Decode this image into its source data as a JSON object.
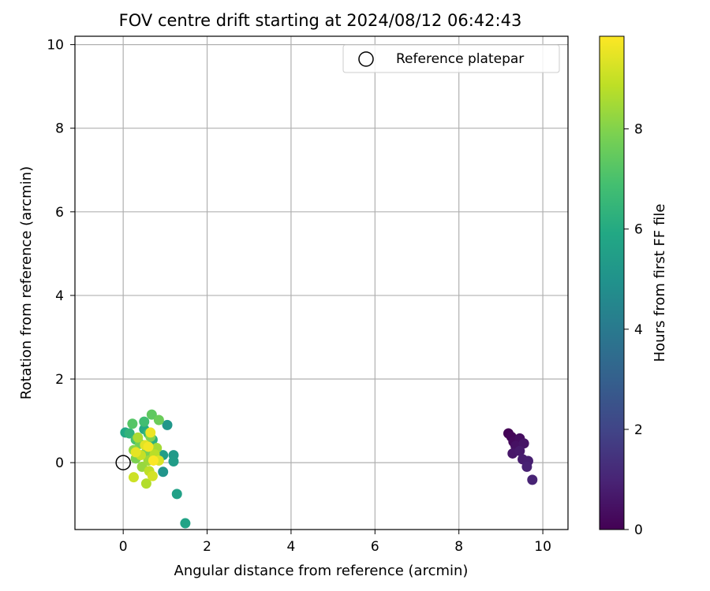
{
  "chart_data": {
    "type": "scatter",
    "title": "FOV centre drift starting at 2024/08/12 06:42:43",
    "xlabel": "Angular distance from reference (arcmin)",
    "ylabel": "Rotation from reference (arcmin)",
    "xlim": [
      -1.15,
      10.6
    ],
    "ylim": [
      -1.6,
      10.2
    ],
    "xticks": [
      0,
      2,
      4,
      6,
      8,
      10
    ],
    "yticks": [
      0,
      2,
      4,
      6,
      8,
      10
    ],
    "grid": true,
    "legend": {
      "placement": "top-right",
      "entries": [
        "Reference platepar"
      ]
    },
    "reference_point": {
      "name": "Reference platepar",
      "x": 0,
      "y": 0,
      "marker": "hollow circle"
    },
    "colorbar": {
      "label": "Hours from first FF file",
      "range": [
        0,
        9.85
      ],
      "ticks": [
        0,
        2,
        4,
        6,
        8
      ],
      "colormap": "viridis"
    },
    "points": [
      {
        "x": 9.18,
        "y": 0.7,
        "c": 0.05
      },
      {
        "x": 9.25,
        "y": 0.62,
        "c": 0.15
      },
      {
        "x": 9.3,
        "y": 0.5,
        "c": 0.25
      },
      {
        "x": 9.45,
        "y": 0.58,
        "c": 0.35
      },
      {
        "x": 9.35,
        "y": 0.4,
        "c": 0.45
      },
      {
        "x": 9.55,
        "y": 0.46,
        "c": 0.55
      },
      {
        "x": 9.28,
        "y": 0.22,
        "c": 0.62
      },
      {
        "x": 9.45,
        "y": 0.28,
        "c": 0.7
      },
      {
        "x": 9.52,
        "y": 0.08,
        "c": 0.78
      },
      {
        "x": 9.65,
        "y": 0.04,
        "c": 0.85
      },
      {
        "x": 9.62,
        "y": -0.1,
        "c": 0.92
      },
      {
        "x": 9.75,
        "y": -0.41,
        "c": 1.0
      },
      {
        "x": 0.95,
        "y": -0.22,
        "c": 5.1
      },
      {
        "x": 1.05,
        "y": 0.9,
        "c": 5.2
      },
      {
        "x": 1.2,
        "y": 0.18,
        "c": 5.3
      },
      {
        "x": 1.2,
        "y": 0.03,
        "c": 5.4
      },
      {
        "x": 0.95,
        "y": 0.18,
        "c": 5.5
      },
      {
        "x": 1.28,
        "y": -0.75,
        "c": 5.6
      },
      {
        "x": 1.48,
        "y": -1.45,
        "c": 5.7
      },
      {
        "x": 0.05,
        "y": 0.72,
        "c": 5.9
      },
      {
        "x": 0.5,
        "y": 0.8,
        "c": 6.0
      },
      {
        "x": 0.7,
        "y": 0.55,
        "c": 6.2
      },
      {
        "x": 0.15,
        "y": 0.7,
        "c": 6.4
      },
      {
        "x": 0.6,
        "y": 0.7,
        "c": 6.6
      },
      {
        "x": 0.5,
        "y": 0.98,
        "c": 6.8
      },
      {
        "x": 0.3,
        "y": 0.55,
        "c": 7.0
      },
      {
        "x": 0.22,
        "y": 0.93,
        "c": 7.2
      },
      {
        "x": 0.68,
        "y": 1.15,
        "c": 7.4
      },
      {
        "x": 0.85,
        "y": 1.02,
        "c": 7.6
      },
      {
        "x": 0.4,
        "y": 0.45,
        "c": 7.7
      },
      {
        "x": 0.55,
        "y": 0.25,
        "c": 7.8
      },
      {
        "x": 0.3,
        "y": 0.1,
        "c": 7.9
      },
      {
        "x": 0.65,
        "y": 0.62,
        "c": 8.0
      },
      {
        "x": 0.25,
        "y": 0.3,
        "c": 8.1
      },
      {
        "x": 0.7,
        "y": 0.1,
        "c": 8.2
      },
      {
        "x": 0.45,
        "y": -0.1,
        "c": 8.3
      },
      {
        "x": 0.6,
        "y": 0.05,
        "c": 8.4
      },
      {
        "x": 0.8,
        "y": 0.35,
        "c": 8.5
      },
      {
        "x": 0.35,
        "y": 0.6,
        "c": 8.6
      },
      {
        "x": 0.55,
        "y": -0.5,
        "c": 8.7
      },
      {
        "x": 0.75,
        "y": 0.2,
        "c": 8.8
      },
      {
        "x": 0.62,
        "y": -0.2,
        "c": 8.9
      },
      {
        "x": 0.42,
        "y": 0.18,
        "c": 9.0
      },
      {
        "x": 0.25,
        "y": -0.35,
        "c": 9.1
      },
      {
        "x": 0.7,
        "y": -0.32,
        "c": 9.2
      },
      {
        "x": 0.85,
        "y": 0.05,
        "c": 9.3
      },
      {
        "x": 0.52,
        "y": 0.42,
        "c": 9.4
      },
      {
        "x": 0.3,
        "y": 0.25,
        "c": 9.5
      },
      {
        "x": 0.65,
        "y": 0.72,
        "c": 9.6
      },
      {
        "x": 0.6,
        "y": 0.38,
        "c": 9.7
      },
      {
        "x": 0.72,
        "y": 0.05,
        "c": 9.8
      }
    ]
  }
}
